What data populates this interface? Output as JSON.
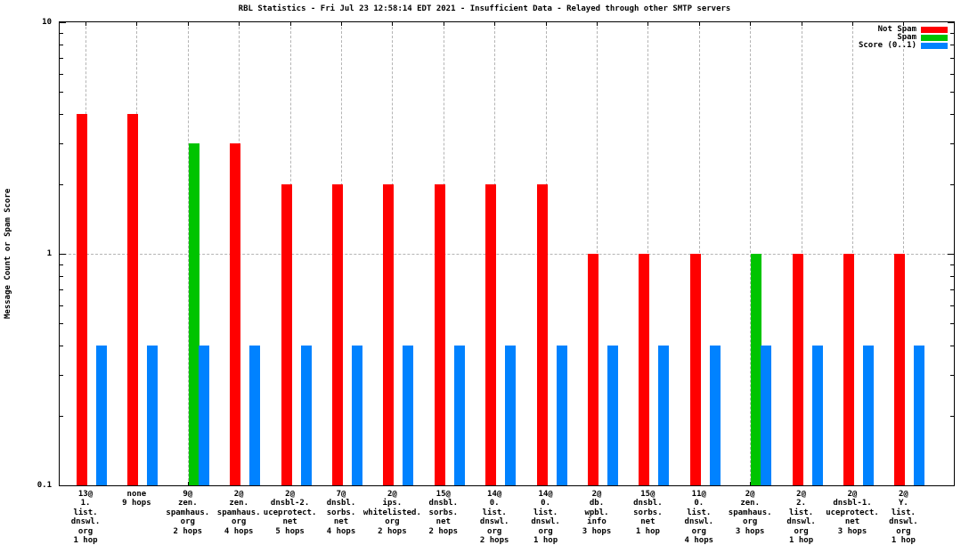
{
  "chart_data": {
    "type": "bar",
    "title": "RBL Statistics - Fri Jul 23 12:58:14 EDT 2021 - Insufficient Data - Relayed through other SMTP servers",
    "ylabel": "Message Count or Spam Score",
    "yscale": "log",
    "ylim": [
      0.1,
      10
    ],
    "ytick_labels": [
      "0.1",
      "1",
      "10"
    ],
    "ytick_values": [
      0.1,
      1,
      10
    ],
    "y_minor_ticks": [
      0.2,
      0.3,
      0.4,
      0.5,
      0.6,
      0.7,
      0.8,
      0.9,
      2,
      3,
      4,
      5,
      6,
      7,
      8,
      9
    ],
    "grid": true,
    "grid_color": "#b4b4b4",
    "axis_color": "#000000",
    "legend_position": "top-right-inside",
    "categories": [
      {
        "lines": [
          "13@",
          "1.",
          "list.",
          "dnswl.",
          "org",
          "1 hop"
        ]
      },
      {
        "lines": [
          "none",
          "9 hops"
        ]
      },
      {
        "lines": [
          "9@",
          "zen.",
          "spamhaus.",
          "org",
          "2 hops"
        ]
      },
      {
        "lines": [
          "2@",
          "zen.",
          "spamhaus.",
          "org",
          "4 hops"
        ]
      },
      {
        "lines": [
          "2@",
          "dnsbl-2.",
          "uceprotect.",
          "net",
          "5 hops"
        ]
      },
      {
        "lines": [
          "7@",
          "dnsbl.",
          "sorbs.",
          "net",
          "4 hops"
        ]
      },
      {
        "lines": [
          "2@",
          "ips.",
          "whitelisted.",
          "org",
          "2 hops"
        ]
      },
      {
        "lines": [
          "15@",
          "dnsbl.",
          "sorbs.",
          "net",
          "2 hops"
        ]
      },
      {
        "lines": [
          "14@",
          "0.",
          "list.",
          "dnswl.",
          "org",
          "2 hops"
        ]
      },
      {
        "lines": [
          "14@",
          "0.",
          "list.",
          "dnswl.",
          "org",
          "1 hop"
        ]
      },
      {
        "lines": [
          "2@",
          "db.",
          "wpbl.",
          "info",
          "3 hops"
        ]
      },
      {
        "lines": [
          "15@",
          "dnsbl.",
          "sorbs.",
          "net",
          "1 hop"
        ]
      },
      {
        "lines": [
          "11@",
          "0.",
          "list.",
          "dnswl.",
          "org",
          "4 hops"
        ]
      },
      {
        "lines": [
          "2@",
          "zen.",
          "spamhaus.",
          "org",
          "3 hops"
        ]
      },
      {
        "lines": [
          "2@",
          "2.",
          "list.",
          "dnswl.",
          "org",
          "1 hop"
        ]
      },
      {
        "lines": [
          "2@",
          "dnsbl-1.",
          "uceprotect.",
          "net",
          "3 hops"
        ]
      },
      {
        "lines": [
          "2@",
          "Y.",
          "list.",
          "dnswl.",
          "org",
          "1 hop"
        ]
      }
    ],
    "series": [
      {
        "name": "Not Spam",
        "color": "#ff0000",
        "values": [
          4,
          4,
          0,
          3,
          2,
          2,
          2,
          2,
          2,
          2,
          1,
          1,
          1,
          0,
          1,
          1,
          1
        ]
      },
      {
        "name": "Spam",
        "color": "#00c400",
        "values": [
          0,
          0,
          3,
          0,
          0,
          0,
          0,
          0,
          0,
          0,
          0,
          0,
          0,
          1,
          0,
          0,
          0
        ]
      },
      {
        "name": "Score (0..1)",
        "color": "#0082ff",
        "values": [
          0.4,
          0.4,
          0.4,
          0.4,
          0.4,
          0.4,
          0.4,
          0.4,
          0.4,
          0.4,
          0.4,
          0.4,
          0.4,
          0.4,
          0.4,
          0.4,
          0.4
        ]
      }
    ]
  }
}
